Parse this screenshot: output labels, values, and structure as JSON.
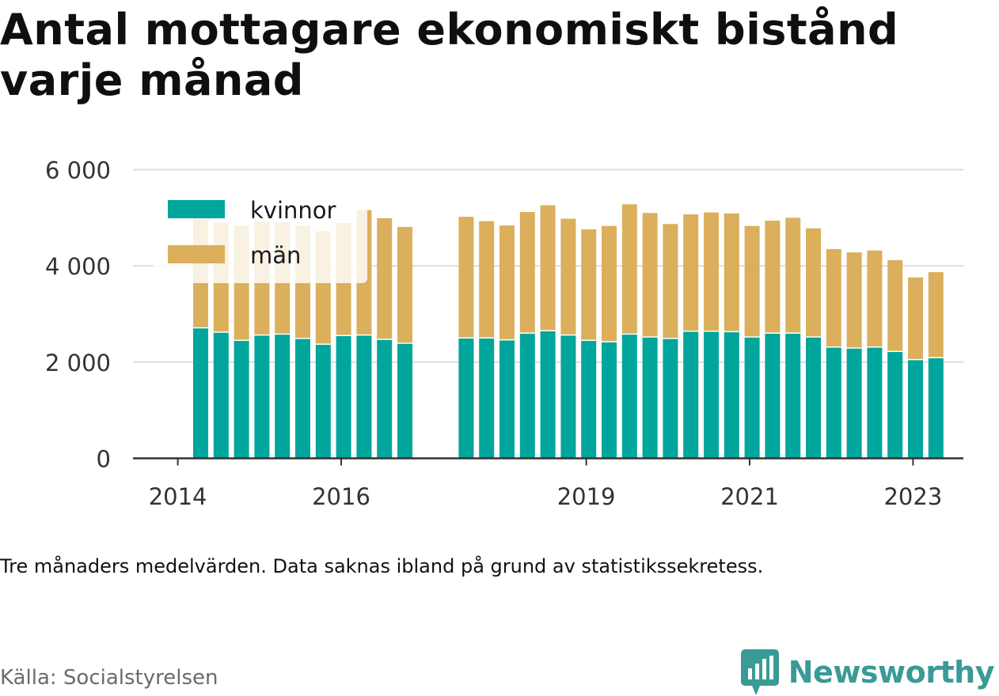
{
  "title": "Antal mottagare ekonomiskt bistånd varje månad",
  "note": "Tre månaders medelvärden. Data saknas ibland på grund av statistikssekretess.",
  "source": "Källa: Socialstyrelsen",
  "brand": {
    "name": "Newsworthy",
    "icon": "newsworthy-logo-icon",
    "color": "#3a9a96"
  },
  "chart_data": {
    "type": "bar",
    "stacked": true,
    "x_unit": "quarter",
    "categories": [
      "2014-Q2",
      "2014-Q3",
      "2014-Q4",
      "2015-Q1",
      "2015-Q2",
      "2015-Q3",
      "2015-Q4",
      "2016-Q1",
      "2016-Q2",
      "2016-Q3",
      "2016-Q4",
      "2017-Q1",
      "2017-Q2",
      "2017-Q3",
      "2017-Q4",
      "2018-Q1",
      "2018-Q2",
      "2018-Q3",
      "2018-Q4",
      "2019-Q1",
      "2019-Q2",
      "2019-Q3",
      "2019-Q4",
      "2020-Q1",
      "2020-Q2",
      "2020-Q3",
      "2020-Q4",
      "2021-Q1",
      "2021-Q2",
      "2021-Q3",
      "2021-Q4",
      "2022-Q1",
      "2022-Q2",
      "2022-Q3",
      "2022-Q4",
      "2023-Q1",
      "2023-Q2"
    ],
    "series": [
      {
        "name": "kvinnor",
        "color": "#00a59b",
        "values": [
          2700,
          2610,
          2440,
          2550,
          2570,
          2480,
          2360,
          2540,
          2550,
          2460,
          2380,
          null,
          null,
          2490,
          2490,
          2450,
          2590,
          2640,
          2550,
          2440,
          2410,
          2570,
          2510,
          2480,
          2630,
          2630,
          2620,
          2510,
          2590,
          2590,
          2510,
          2300,
          2280,
          2300,
          2210,
          2040,
          2080
        ]
      },
      {
        "name": "män",
        "color": "#dbaf5c",
        "values": [
          2280,
          2290,
          2390,
          2370,
          2330,
          2350,
          2360,
          2350,
          2610,
          2530,
          2430,
          null,
          null,
          2530,
          2440,
          2390,
          2530,
          2620,
          2430,
          2320,
          2420,
          2710,
          2590,
          2390,
          2440,
          2480,
          2470,
          2320,
          2350,
          2410,
          2270,
          2050,
          2000,
          2020,
          1910,
          1720,
          1790
        ]
      }
    ],
    "x_ticks": [
      "2014",
      "2016",
      "2019",
      "2021",
      "2023"
    ],
    "y_ticks": [
      "0",
      "2 000",
      "4 000",
      "6 000"
    ],
    "ylim": [
      0,
      6000
    ],
    "grid": true,
    "legend_position": "top-left"
  }
}
